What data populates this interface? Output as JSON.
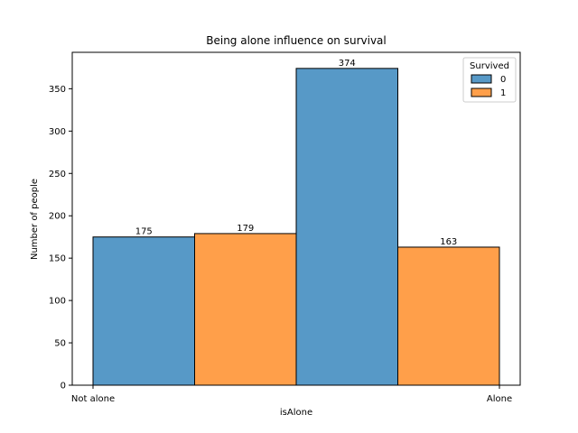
{
  "chart_data": {
    "type": "bar",
    "title": "Being alone influence on survival",
    "xlabel": "isAlone",
    "ylabel": "Number of people",
    "x_tick_labels": [
      "Not alone",
      "Alone"
    ],
    "ylim": [
      0,
      393
    ],
    "yticks": [
      0,
      50,
      100,
      150,
      200,
      250,
      300,
      350
    ],
    "legend": {
      "title": "Survived",
      "placement": "top-right",
      "entries": [
        "0",
        "1"
      ]
    },
    "bars": [
      {
        "group": "Not alone",
        "survived": "0",
        "value": 175,
        "color": "#5799c7"
      },
      {
        "group": "Not alone",
        "survived": "1",
        "value": 179,
        "color": "#ff9f4a"
      },
      {
        "group": "Alone",
        "survived": "0",
        "value": 374,
        "color": "#5799c7"
      },
      {
        "group": "Alone",
        "survived": "1",
        "value": 163,
        "color": "#ff9f4a"
      }
    ],
    "grid": false
  }
}
